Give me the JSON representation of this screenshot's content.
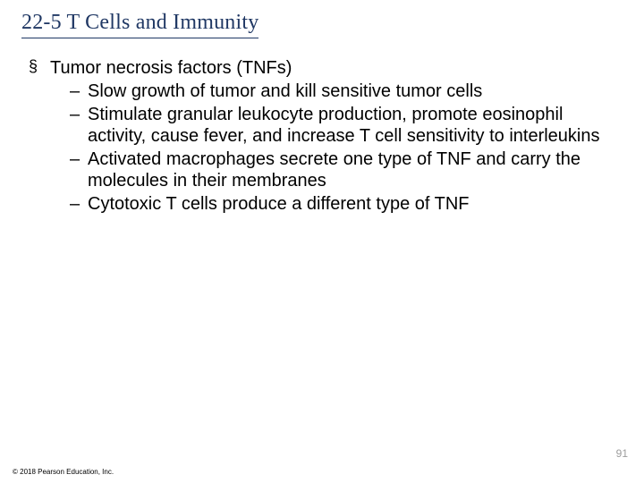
{
  "slide": {
    "title": "22-5 T Cells and Immunity",
    "title_color": "#203864",
    "title_fontfamily": "Times New Roman",
    "title_fontsize": 24,
    "title_underline_color": "#1f3864",
    "bullet_glyph": "§",
    "dash_glyph": "–",
    "body_fontsize": 20,
    "body_color": "#000000",
    "l1_text": "Tumor necrosis factors (TNFs)",
    "l2": [
      "Slow growth of tumor and kill sensitive tumor cells",
      "Stimulate granular leukocyte production, promote eosinophil activity, cause fever, and increase T cell sensitivity to interleukins",
      "Activated macrophages secrete one type of TNF and carry the molecules in their membranes",
      "Cytotoxic T cells produce a different type of TNF"
    ],
    "page_number": "91",
    "page_number_color": "#9c9c9c",
    "page_number_fontsize": 12,
    "copyright": "© 2018 Pearson Education, Inc.",
    "copyright_fontsize": 8,
    "background_color": "#ffffff"
  }
}
